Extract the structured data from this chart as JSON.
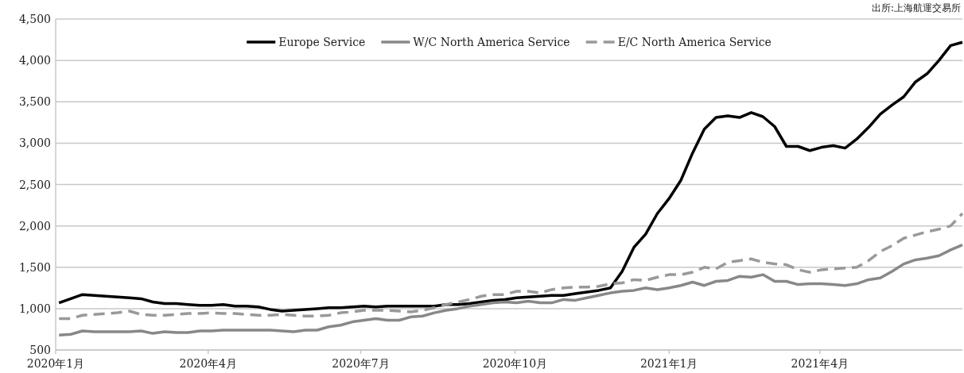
{
  "chart_data": {
    "type": "line",
    "annotations": [
      "出所:上海航運交易所"
    ],
    "x": [
      "2020-01-03",
      "2020-01-10",
      "2020-01-17",
      "2020-01-24",
      "2020-01-31",
      "2020-02-07",
      "2020-02-14",
      "2020-02-21",
      "2020-02-28",
      "2020-03-06",
      "2020-03-13",
      "2020-03-20",
      "2020-03-27",
      "2020-04-03",
      "2020-04-10",
      "2020-04-17",
      "2020-04-24",
      "2020-05-01",
      "2020-05-08",
      "2020-05-15",
      "2020-05-22",
      "2020-05-29",
      "2020-06-05",
      "2020-06-12",
      "2020-06-19",
      "2020-06-26",
      "2020-07-03",
      "2020-07-10",
      "2020-07-17",
      "2020-07-24",
      "2020-07-31",
      "2020-08-07",
      "2020-08-14",
      "2020-08-21",
      "2020-08-28",
      "2020-09-04",
      "2020-09-11",
      "2020-09-18",
      "2020-09-25",
      "2020-10-02",
      "2020-10-09",
      "2020-10-16",
      "2020-10-23",
      "2020-10-30",
      "2020-11-06",
      "2020-11-13",
      "2020-11-20",
      "2020-11-27",
      "2020-12-04",
      "2020-12-11",
      "2020-12-18",
      "2020-12-25",
      "2021-01-01",
      "2021-01-08",
      "2021-01-15",
      "2021-01-22",
      "2021-01-29",
      "2021-02-05",
      "2021-02-12",
      "2021-02-19",
      "2021-02-26",
      "2021-03-05",
      "2021-03-12",
      "2021-03-19",
      "2021-03-26",
      "2021-04-02",
      "2021-04-09",
      "2021-04-16",
      "2021-04-23",
      "2021-04-30",
      "2021-05-07",
      "2021-05-14",
      "2021-05-21",
      "2021-05-28",
      "2021-06-04",
      "2021-06-11",
      "2021-06-18",
      "2021-06-25"
    ],
    "series": [
      {
        "name": "Europe Service",
        "color": "#000000",
        "line_style": "solid",
        "values": [
          1070,
          1120,
          1170,
          1160,
          1150,
          1140,
          1130,
          1120,
          1080,
          1060,
          1060,
          1050,
          1040,
          1040,
          1050,
          1030,
          1030,
          1020,
          990,
          970,
          980,
          990,
          1000,
          1010,
          1010,
          1020,
          1030,
          1020,
          1030,
          1030,
          1030,
          1030,
          1030,
          1050,
          1050,
          1060,
          1080,
          1100,
          1110,
          1130,
          1140,
          1150,
          1160,
          1160,
          1180,
          1200,
          1220,
          1250,
          1450,
          1740,
          1900,
          2150,
          2330,
          2550,
          2880,
          3170,
          3310,
          3330,
          3310,
          3370,
          3320,
          3200,
          2960,
          2960,
          2910,
          2950,
          2970,
          2940,
          3050,
          3190,
          3350,
          3460,
          3560,
          3740,
          3840,
          4000,
          4180,
          4220
        ]
      },
      {
        "name": "W/C North America Service",
        "color": "#888888",
        "line_style": "solid",
        "values": [
          680,
          690,
          730,
          720,
          720,
          720,
          720,
          730,
          700,
          720,
          710,
          710,
          730,
          730,
          740,
          740,
          740,
          740,
          740,
          730,
          720,
          740,
          740,
          780,
          800,
          840,
          860,
          880,
          860,
          860,
          900,
          910,
          950,
          980,
          1000,
          1030,
          1050,
          1070,
          1080,
          1070,
          1090,
          1070,
          1070,
          1110,
          1100,
          1130,
          1160,
          1190,
          1210,
          1220,
          1250,
          1230,
          1250,
          1280,
          1320,
          1280,
          1330,
          1340,
          1390,
          1380,
          1410,
          1330,
          1330,
          1290,
          1300,
          1300,
          1290,
          1280,
          1300,
          1350,
          1370,
          1450,
          1540,
          1590,
          1610,
          1640,
          1710,
          1770
        ]
      },
      {
        "name": "E/C North America Service",
        "color": "#999999",
        "line_style": "dashed",
        "values": [
          880,
          880,
          920,
          930,
          940,
          950,
          970,
          930,
          920,
          920,
          930,
          940,
          940,
          950,
          940,
          940,
          930,
          920,
          920,
          930,
          920,
          910,
          910,
          920,
          950,
          960,
          980,
          980,
          980,
          970,
          960,
          980,
          1010,
          1050,
          1080,
          1110,
          1150,
          1170,
          1170,
          1210,
          1210,
          1190,
          1230,
          1250,
          1260,
          1260,
          1270,
          1300,
          1310,
          1350,
          1340,
          1380,
          1410,
          1410,
          1440,
          1500,
          1480,
          1560,
          1580,
          1600,
          1560,
          1540,
          1530,
          1470,
          1440,
          1470,
          1480,
          1490,
          1500,
          1580,
          1690,
          1760,
          1850,
          1890,
          1930,
          1960,
          2000,
          2150
        ]
      }
    ],
    "xlim": [
      "2020-01-01",
      "2021-06-25"
    ],
    "xticks": [
      {
        "value": "2020-01-01",
        "label": "2020年1月"
      },
      {
        "value": "2020-04-01",
        "label": "2020年4月"
      },
      {
        "value": "2020-07-01",
        "label": "2020年7月"
      },
      {
        "value": "2020-10-01",
        "label": "2020年10月"
      },
      {
        "value": "2021-01-01",
        "label": "2021年1月"
      },
      {
        "value": "2021-04-01",
        "label": "2021年4月"
      }
    ],
    "ylim": [
      500,
      4500
    ],
    "yticks": [
      500,
      {
        "value": 1000,
        "label": "1,000"
      },
      {
        "value": 1500,
        "label": "1,500"
      },
      {
        "value": 2000,
        "label": "2,000"
      },
      {
        "value": 2500,
        "label": "2,500"
      },
      {
        "value": 3000,
        "label": "3,000"
      },
      {
        "value": 3500,
        "label": "3,500"
      },
      {
        "value": 4000,
        "label": "4,000"
      },
      {
        "value": 4500,
        "label": "4,500"
      }
    ],
    "grid": "y",
    "legend": "top",
    "marker": "none"
  }
}
